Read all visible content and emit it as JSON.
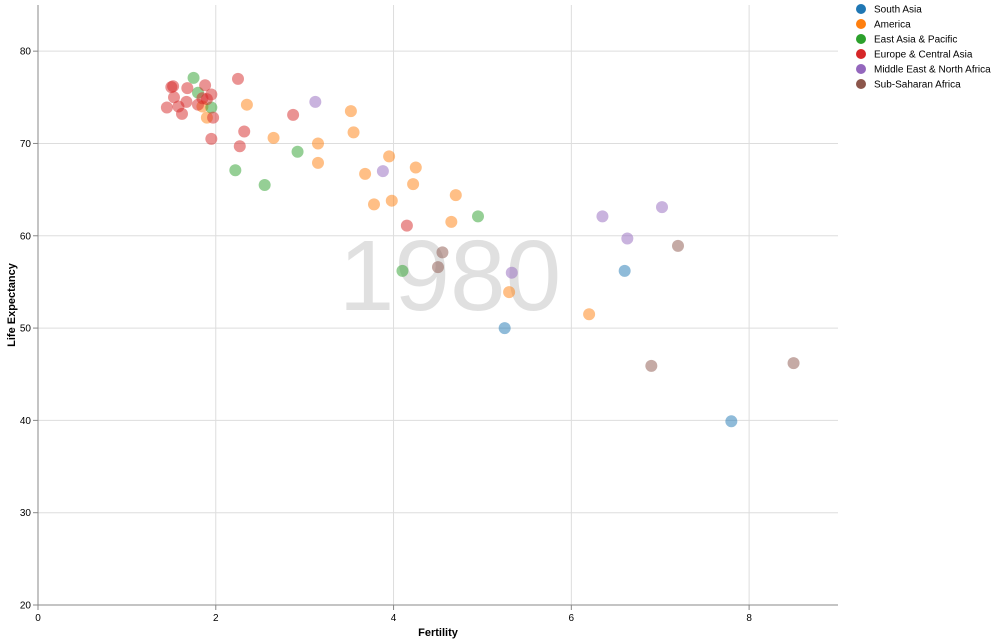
{
  "chart_data": {
    "type": "scatter",
    "year_label": "1980",
    "xlabel": "Fertility",
    "ylabel": "Life Expectancy",
    "xlim": [
      0,
      9
    ],
    "ylim": [
      20,
      85
    ],
    "x_ticks": [
      0,
      2,
      4,
      6,
      8
    ],
    "y_ticks": [
      20,
      30,
      40,
      50,
      60,
      70,
      80
    ],
    "grid": true,
    "legend_position": "top-right",
    "series": [
      {
        "name": "South Asia",
        "color": "#1f77b4",
        "points": [
          [
            5.25,
            50.0
          ],
          [
            6.6,
            56.2
          ],
          [
            7.8,
            39.9
          ]
        ]
      },
      {
        "name": "America",
        "color": "#ff7f0e",
        "points": [
          [
            1.85,
            74.0
          ],
          [
            1.9,
            72.8
          ],
          [
            2.35,
            74.2
          ],
          [
            2.65,
            70.6
          ],
          [
            3.15,
            70.0
          ],
          [
            3.15,
            67.9
          ],
          [
            3.52,
            73.5
          ],
          [
            3.55,
            71.2
          ],
          [
            3.68,
            66.7
          ],
          [
            3.78,
            63.4
          ],
          [
            3.95,
            68.6
          ],
          [
            3.98,
            63.8
          ],
          [
            4.22,
            65.6
          ],
          [
            4.25,
            67.4
          ],
          [
            4.65,
            61.5
          ],
          [
            4.7,
            64.4
          ],
          [
            5.3,
            53.9
          ],
          [
            6.2,
            51.5
          ]
        ]
      },
      {
        "name": "East Asia & Pacific",
        "color": "#2ca02c",
        "points": [
          [
            1.75,
            77.1
          ],
          [
            1.8,
            75.5
          ],
          [
            1.95,
            73.9
          ],
          [
            2.22,
            67.1
          ],
          [
            2.55,
            65.5
          ],
          [
            2.92,
            69.1
          ],
          [
            4.1,
            56.2
          ],
          [
            4.95,
            62.1
          ]
        ]
      },
      {
        "name": "Europe & Central Asia",
        "color": "#d62728",
        "points": [
          [
            1.45,
            73.9
          ],
          [
            1.5,
            76.1
          ],
          [
            1.52,
            76.2
          ],
          [
            1.53,
            75.0
          ],
          [
            1.58,
            74.0
          ],
          [
            1.62,
            73.2
          ],
          [
            1.67,
            74.5
          ],
          [
            1.68,
            76.0
          ],
          [
            1.8,
            74.2
          ],
          [
            1.85,
            74.9
          ],
          [
            1.88,
            76.3
          ],
          [
            1.9,
            74.8
          ],
          [
            1.95,
            75.3
          ],
          [
            1.97,
            72.8
          ],
          [
            1.95,
            70.5
          ],
          [
            2.25,
            77.0
          ],
          [
            2.27,
            69.7
          ],
          [
            2.32,
            71.3
          ],
          [
            2.87,
            73.1
          ],
          [
            4.15,
            61.1
          ]
        ]
      },
      {
        "name": "Middle East & North Africa",
        "color": "#9467bd",
        "points": [
          [
            3.12,
            74.5
          ],
          [
            3.88,
            67.0
          ],
          [
            5.33,
            56.0
          ],
          [
            6.35,
            62.1
          ],
          [
            6.63,
            59.7
          ],
          [
            7.02,
            63.1
          ]
        ]
      },
      {
        "name": "Sub-Saharan Africa",
        "color": "#8c564b",
        "points": [
          [
            4.5,
            56.6
          ],
          [
            4.55,
            58.2
          ],
          [
            6.9,
            45.9
          ],
          [
            7.2,
            58.9
          ],
          [
            8.5,
            46.2
          ]
        ]
      }
    ]
  }
}
